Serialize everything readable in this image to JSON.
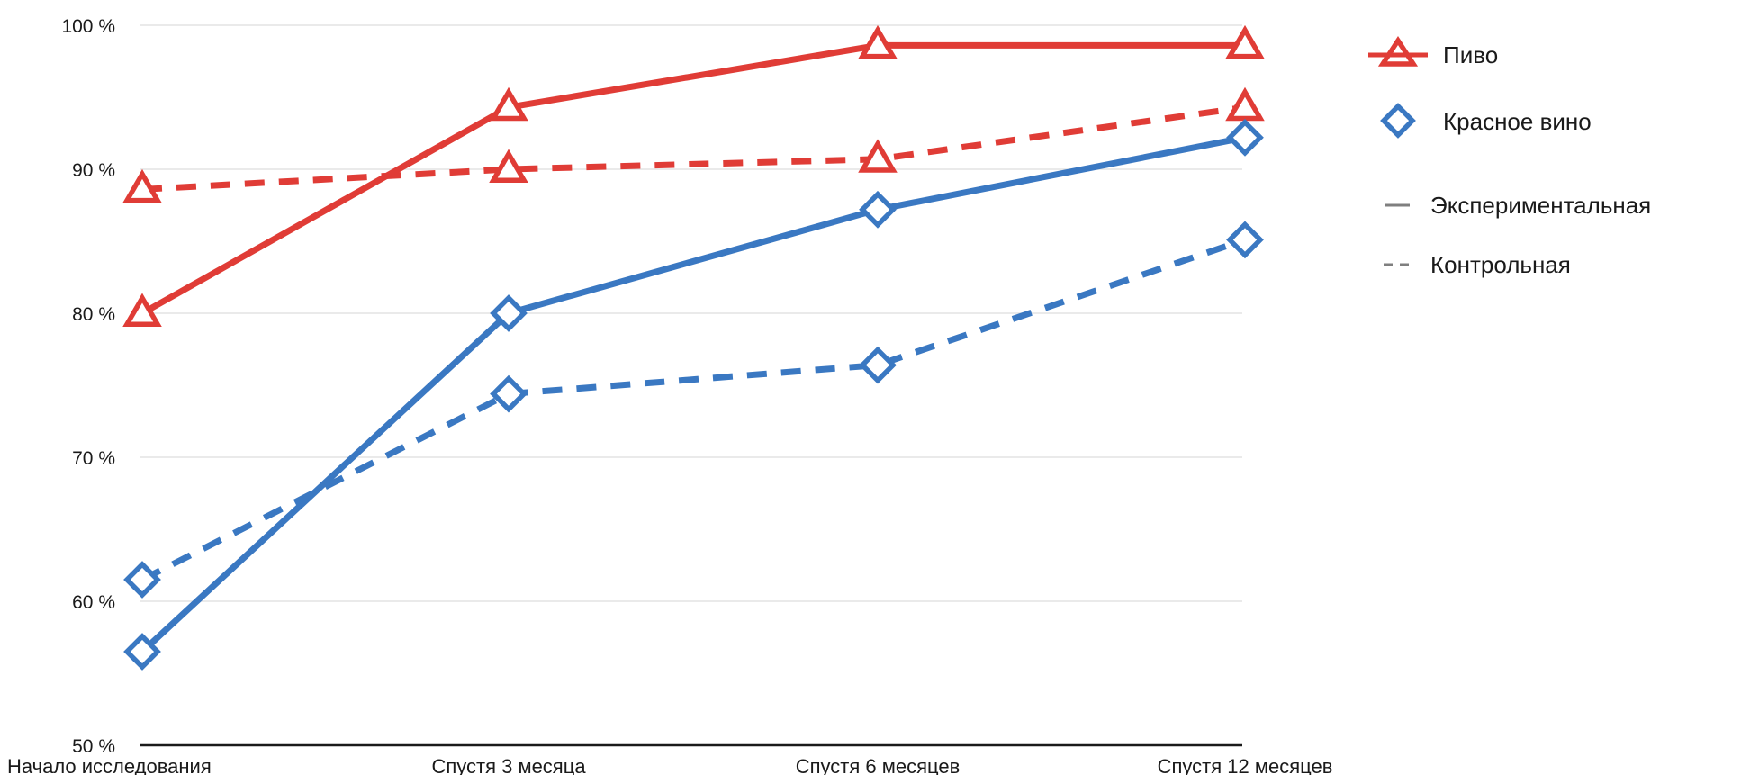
{
  "chart_data": {
    "type": "line",
    "title": "",
    "xlabel": "",
    "ylabel": "",
    "ylim": [
      50,
      100
    ],
    "y_ticks": [
      50,
      60,
      70,
      80,
      90,
      100
    ],
    "y_tick_suffix": " %",
    "grid": true,
    "legend_position": "right",
    "categories": [
      "Начало исследования",
      "Спустя 3 месяца",
      "Спустя 6 месяцев",
      "Спустя 12 месяцев"
    ],
    "series": [
      {
        "drink": "Пиво",
        "group": "Экспериментальная",
        "marker": "triangle",
        "line_style": "solid",
        "color": "#e03c36",
        "values": [
          80,
          94.3,
          98.6,
          98.6
        ]
      },
      {
        "drink": "Пиво",
        "group": "Контрольная",
        "marker": "triangle",
        "line_style": "dashed",
        "color": "#e03c36",
        "values": [
          88.6,
          90,
          90.7,
          94.3
        ]
      },
      {
        "drink": "Красное вино",
        "group": "Экспериментальная",
        "marker": "diamond",
        "line_style": "solid",
        "color": "#3a78c2",
        "values": [
          56.5,
          80,
          87.2,
          92.2
        ]
      },
      {
        "drink": "Красное вино",
        "group": "Контрольная",
        "marker": "diamond",
        "line_style": "dashed",
        "color": "#3a78c2",
        "values": [
          61.5,
          74.4,
          76.4,
          85.1
        ]
      }
    ],
    "legend": {
      "markers": [
        {
          "label": "Пиво",
          "marker": "triangle",
          "color": "#e03c36"
        },
        {
          "label": "Красное вино",
          "marker": "diamond",
          "color": "#3a78c2"
        }
      ],
      "lines": [
        {
          "label": "Экспериментальная",
          "line_style": "solid",
          "color": "#7f7f7f"
        },
        {
          "label": "Контрольная",
          "line_style": "dashed",
          "color": "#7f7f7f"
        }
      ]
    }
  }
}
